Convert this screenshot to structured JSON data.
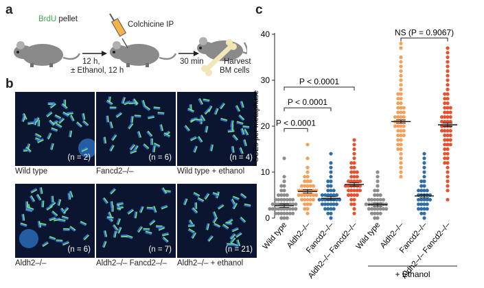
{
  "panels": {
    "a": "a",
    "b": "b",
    "c": "c"
  },
  "schematic": {
    "brdu": "BrdU",
    "pellet": " pellet",
    "colchicine": "Colchicine IP",
    "time1_line1": "12 h,",
    "time1_line2": "± Ethanol, 12 h",
    "time2": "30 min",
    "harvest_line1": "Harvest",
    "harvest_line2": "BM cells",
    "brdu_color": "#3fae49"
  },
  "micrographs": [
    {
      "caption": "Wild type",
      "n": "(n = 2)"
    },
    {
      "caption": "Fancd2–/–",
      "n": "(n = 6)"
    },
    {
      "caption": "Wild type + ethanol",
      "n": "(n = 4)"
    },
    {
      "caption": "Aldh2–/–",
      "n": "(n = 6)"
    },
    {
      "caption": "Aldh2–/– Fancd2–/–",
      "n": "(n = 7)"
    },
    {
      "caption": "Aldh2–/– + ethanol",
      "n": "(n = 21)"
    }
  ],
  "chart_data": {
    "type": "scatter",
    "ylabel": "SCEs per metaphase",
    "ylim": [
      0,
      40
    ],
    "yticks": [
      0,
      10,
      20,
      30,
      40
    ],
    "categories": [
      "Wild type",
      "Aldh2–/–",
      "Fancd2–/–",
      "Aldh2–/– Fancd2–/–",
      "Wild type",
      "Aldh2–/–",
      "Fancd2–/–",
      "Aldh2–/– Fancd2–/–"
    ],
    "group_label": "+ Ethanol",
    "colors": [
      "#8c8c8c",
      "#f5a05a",
      "#2f6da7",
      "#e8512f",
      "#8c8c8c",
      "#f5a05a",
      "#2f6da7",
      "#e8512f"
    ],
    "means": [
      2.7,
      5.8,
      4.3,
      7.3,
      2.9,
      21.0,
      4.8,
      20.3
    ],
    "significance": [
      {
        "label": "P < 0.0001",
        "from": 0,
        "to": 1,
        "y": 19.5
      },
      {
        "label": "P < 0.0001",
        "from": 0,
        "to": 2,
        "y": 24.0
      },
      {
        "label": "P < 0.0001",
        "from": 0,
        "to": 3,
        "y": 28.5
      },
      {
        "label": "NS (P = 0.9067)",
        "from": 5,
        "to": 7,
        "y": 39.2
      }
    ],
    "series": [
      {
        "values": [
          0,
          0,
          0,
          1,
          1,
          1,
          1,
          1,
          1,
          1,
          2,
          2,
          2,
          2,
          2,
          2,
          2,
          2,
          2,
          2,
          3,
          3,
          3,
          3,
          3,
          3,
          3,
          3,
          3,
          4,
          4,
          4,
          4,
          4,
          4,
          4,
          5,
          5,
          5,
          5,
          6,
          6,
          7,
          7,
          8,
          9,
          13
        ]
      },
      {
        "values": [
          1,
          2,
          2,
          3,
          3,
          3,
          4,
          4,
          4,
          4,
          4,
          5,
          5,
          5,
          5,
          5,
          5,
          5,
          6,
          6,
          6,
          6,
          6,
          6,
          6,
          7,
          7,
          7,
          7,
          7,
          8,
          8,
          8,
          9,
          9,
          10,
          11,
          13,
          16
        ]
      },
      {
        "values": [
          0,
          1,
          1,
          2,
          2,
          2,
          2,
          3,
          3,
          3,
          3,
          3,
          3,
          4,
          4,
          4,
          4,
          4,
          4,
          4,
          4,
          5,
          5,
          5,
          5,
          5,
          5,
          6,
          6,
          6,
          7,
          7,
          8,
          8,
          9,
          10,
          11,
          12,
          14
        ]
      },
      {
        "values": [
          1,
          2,
          3,
          3,
          4,
          4,
          5,
          5,
          5,
          5,
          6,
          6,
          6,
          6,
          6,
          7,
          7,
          7,
          7,
          7,
          7,
          8,
          8,
          8,
          8,
          8,
          9,
          9,
          9,
          10,
          10,
          10,
          11,
          11,
          12,
          12,
          13,
          14,
          15,
          16,
          17
        ]
      },
      {
        "values": [
          0,
          0,
          1,
          1,
          1,
          1,
          2,
          2,
          2,
          2,
          2,
          2,
          2,
          3,
          3,
          3,
          3,
          3,
          3,
          3,
          3,
          4,
          4,
          4,
          4,
          4,
          4,
          5,
          5,
          5,
          6,
          6,
          7,
          8,
          9,
          10
        ]
      },
      {
        "values": [
          9,
          10,
          11,
          12,
          13,
          14,
          15,
          15,
          16,
          16,
          17,
          17,
          18,
          18,
          18,
          19,
          19,
          19,
          20,
          20,
          20,
          20,
          21,
          21,
          21,
          21,
          22,
          22,
          22,
          22,
          23,
          23,
          23,
          24,
          24,
          24,
          25,
          25,
          26,
          26,
          27,
          27,
          28,
          29,
          30,
          31,
          32,
          33,
          34,
          35,
          37,
          38
        ]
      },
      {
        "values": [
          0,
          1,
          1,
          2,
          2,
          2,
          2,
          3,
          3,
          3,
          3,
          4,
          4,
          4,
          4,
          4,
          5,
          5,
          5,
          5,
          5,
          6,
          6,
          6,
          6,
          7,
          7,
          8,
          8,
          9,
          10,
          11,
          12,
          13,
          14
        ]
      },
      {
        "values": [
          4,
          6,
          7,
          8,
          9,
          10,
          11,
          12,
          12,
          13,
          13,
          14,
          14,
          15,
          15,
          16,
          16,
          16,
          17,
          17,
          17,
          18,
          18,
          18,
          19,
          19,
          19,
          19,
          20,
          20,
          20,
          20,
          21,
          21,
          21,
          21,
          22,
          22,
          22,
          22,
          23,
          23,
          23,
          24,
          24,
          24,
          25,
          25,
          26,
          26,
          27,
          27,
          28,
          29,
          30,
          31,
          32,
          33,
          34,
          35,
          36,
          37
        ]
      }
    ]
  }
}
